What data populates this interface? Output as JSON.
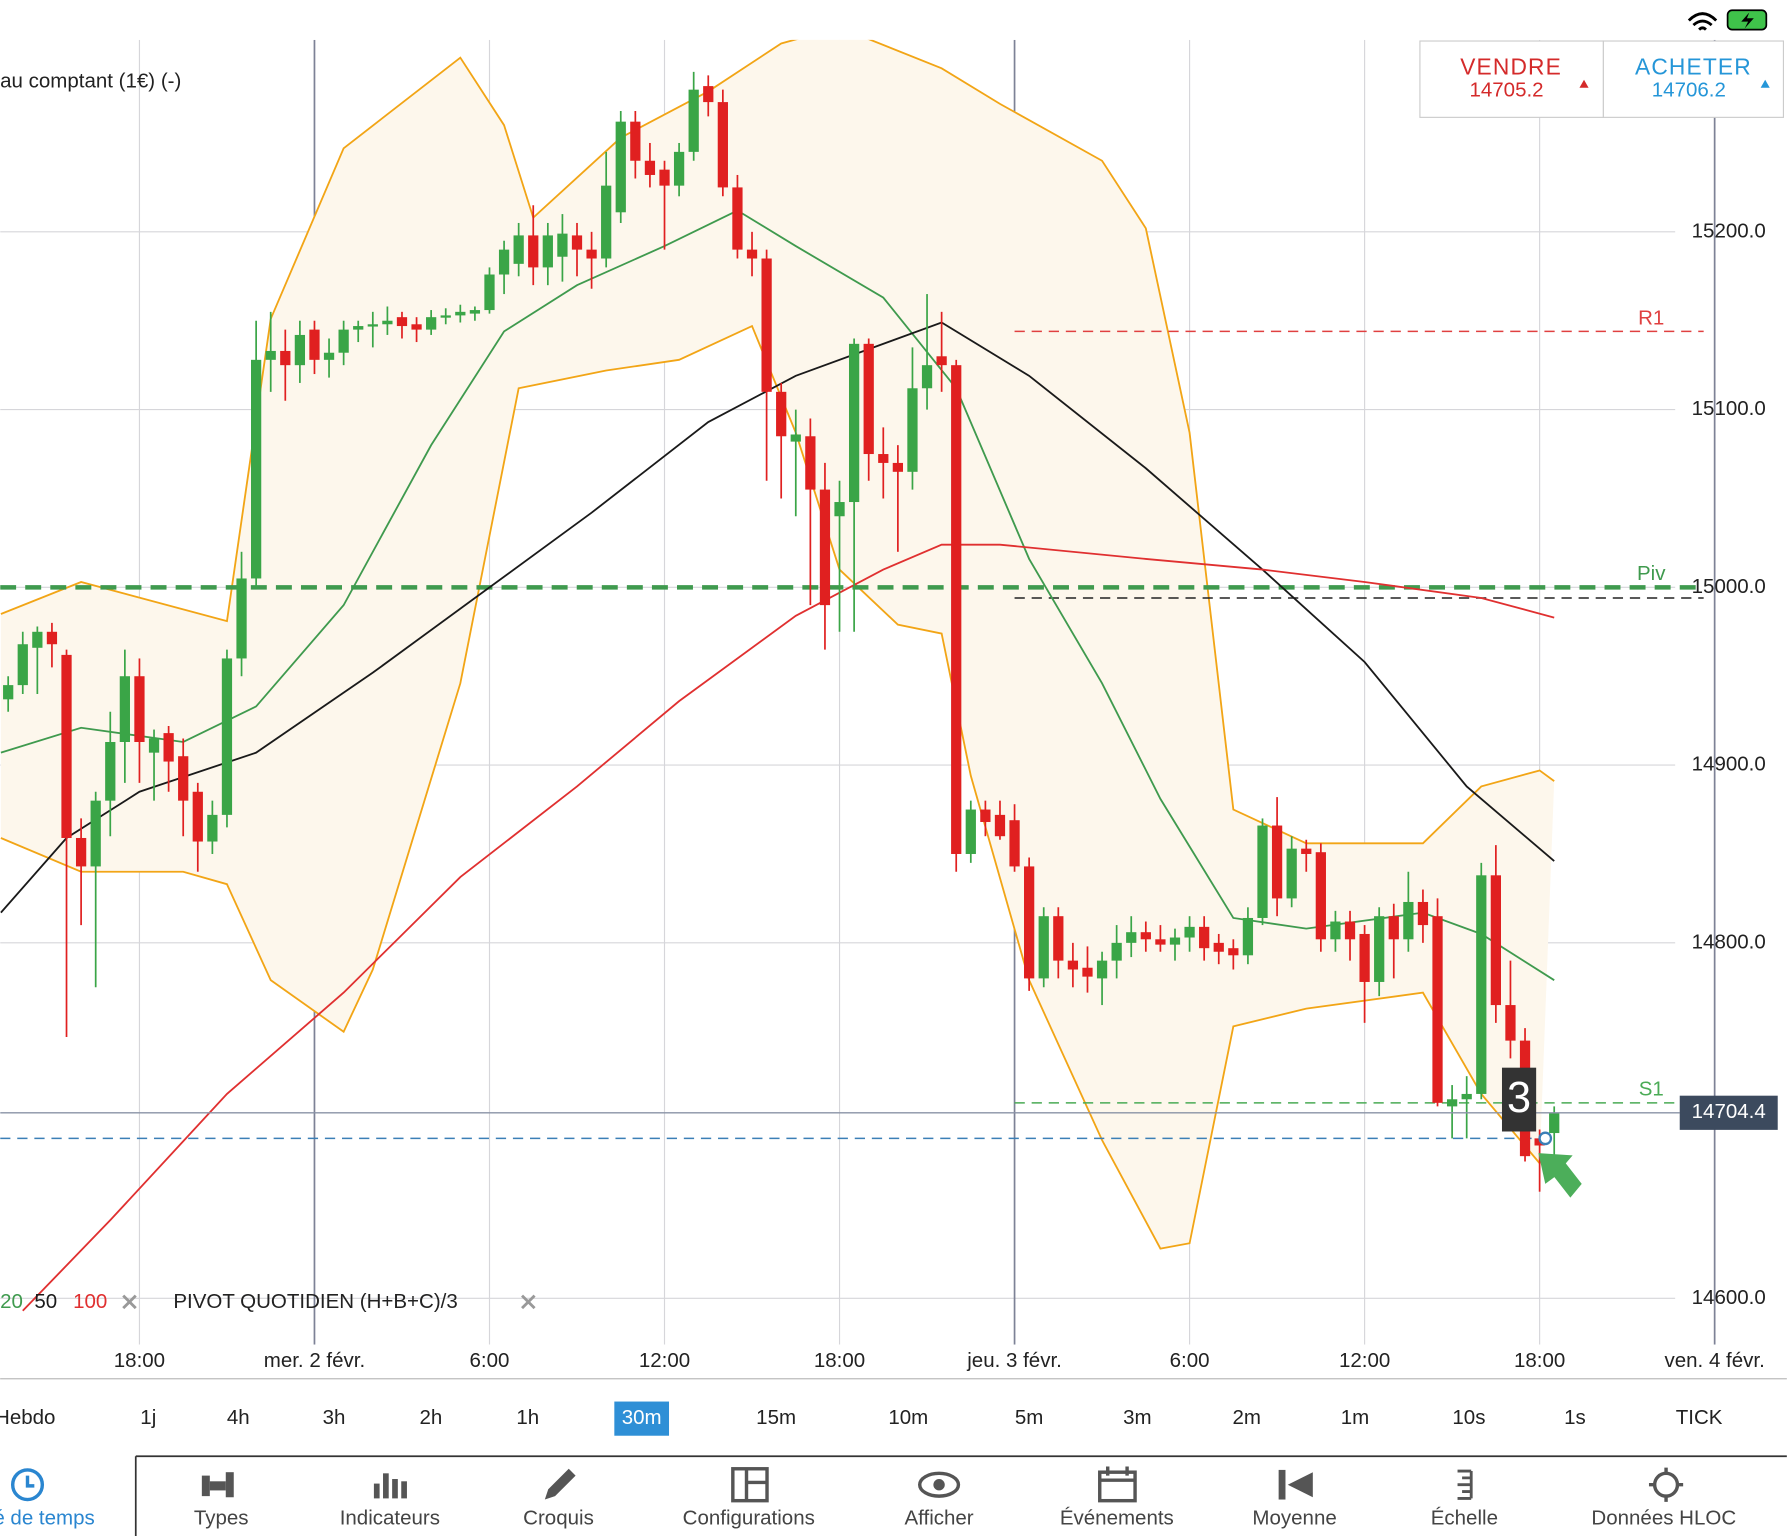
{
  "header": {
    "instrument": "au comptant (1€) (-)"
  },
  "quote": {
    "sell_label": "VENDRE",
    "sell": 14705.2,
    "buy_label": "ACHETER",
    "buy": 14706.2
  },
  "chart_data": {
    "type": "candlestick",
    "up_color": "#3aa547",
    "down_color": "#e02020",
    "xlim": [
      -0.55,
      121.95
    ],
    "ylim": [
      14574,
      15308
    ],
    "yticks": [
      {
        "value": 14600,
        "label": "14600.0"
      },
      {
        "value": 14800,
        "label": "14800.0"
      },
      {
        "value": 14900,
        "label": "14900.0"
      },
      {
        "value": 15000,
        "label": "15000.0"
      },
      {
        "value": 15100,
        "label": "15100.0"
      },
      {
        "value": 15200,
        "label": "15200.0"
      }
    ],
    "xticks": [
      {
        "value": 9,
        "label": "18:00"
      },
      {
        "value": 21,
        "label": "mer. 2 févr."
      },
      {
        "value": 33,
        "label": "6:00"
      },
      {
        "value": 45,
        "label": "12:00"
      },
      {
        "value": 57,
        "label": "18:00"
      },
      {
        "value": 69,
        "label": "jeu. 3 févr."
      },
      {
        "value": 81,
        "label": "6:00"
      },
      {
        "value": 93,
        "label": "12:00"
      },
      {
        "value": 105,
        "label": "18:00"
      },
      {
        "value": 117,
        "label": "ven. 4 févr."
      }
    ],
    "candles": [
      [
        14937,
        14950,
        14930,
        14945
      ],
      [
        14945,
        14975,
        14940,
        14968
      ],
      [
        14966,
        14978,
        14940,
        14975
      ],
      [
        14975,
        14980,
        14955,
        14968
      ],
      [
        14962,
        14965,
        14747,
        14859
      ],
      [
        14859,
        14870,
        14810,
        14843
      ],
      [
        14843,
        14885,
        14775,
        14880
      ],
      [
        14880,
        14930,
        14860,
        14913
      ],
      [
        14913,
        14965,
        14890,
        14950
      ],
      [
        14950,
        14960,
        14890,
        14913
      ],
      [
        14907,
        14920,
        14880,
        14915
      ],
      [
        14918,
        14922,
        14885,
        14902
      ],
      [
        14905,
        14915,
        14860,
        14880
      ],
      [
        14885,
        14890,
        14840,
        14857
      ],
      [
        14857,
        14880,
        14850,
        14872
      ],
      [
        14872,
        14965,
        14865,
        14960
      ],
      [
        14960,
        15020,
        14950,
        15005
      ],
      [
        15005,
        15150,
        15000,
        15128
      ],
      [
        15128,
        15155,
        15110,
        15133
      ],
      [
        15133,
        15145,
        15105,
        15125
      ],
      [
        15125,
        15150,
        15115,
        15142
      ],
      [
        15145,
        15150,
        15120,
        15128
      ],
      [
        15128,
        15140,
        15118,
        15132
      ],
      [
        15132,
        15150,
        15125,
        15145
      ],
      [
        15145,
        15150,
        15138,
        15147
      ],
      [
        15147,
        15155,
        15135,
        15148
      ],
      [
        15148,
        15158,
        15142,
        15150
      ],
      [
        15152,
        15155,
        15140,
        15147
      ],
      [
        15148,
        15152,
        15138,
        15145
      ],
      [
        15145,
        15156,
        15142,
        15152
      ],
      [
        15152,
        15157,
        15148,
        15153
      ],
      [
        15153,
        15159,
        15149,
        15155
      ],
      [
        15154,
        15158,
        15150,
        15156
      ],
      [
        15156,
        15180,
        15154,
        15176
      ],
      [
        15176,
        15195,
        15165,
        15190
      ],
      [
        15182,
        15205,
        15175,
        15198
      ],
      [
        15198,
        15215,
        15170,
        15180
      ],
      [
        15180,
        15205,
        15170,
        15198
      ],
      [
        15186,
        15210,
        15172,
        15199
      ],
      [
        15198,
        15205,
        15175,
        15190
      ],
      [
        15190,
        15200,
        15168,
        15185
      ],
      [
        15185,
        15245,
        15180,
        15226
      ],
      [
        15211,
        15268,
        15205,
        15262
      ],
      [
        15262,
        15268,
        15230,
        15240
      ],
      [
        15240,
        15250,
        15225,
        15232
      ],
      [
        15235,
        15240,
        15190,
        15226
      ],
      [
        15226,
        15250,
        15220,
        15245
      ],
      [
        15245,
        15290,
        15240,
        15280
      ],
      [
        15282,
        15288,
        15265,
        15273
      ],
      [
        15273,
        15280,
        15220,
        15225
      ],
      [
        15225,
        15232,
        15185,
        15190
      ],
      [
        15190,
        15200,
        15175,
        15185
      ],
      [
        15185,
        15190,
        15060,
        15110
      ],
      [
        15110,
        15115,
        15050,
        15085
      ],
      [
        15082,
        15100,
        15040,
        15086
      ],
      [
        15085,
        15095,
        14990,
        15055
      ],
      [
        15055,
        15070,
        14965,
        14990
      ],
      [
        15040,
        15060,
        14975,
        15048
      ],
      [
        15048,
        15140,
        14975,
        15137
      ],
      [
        15137,
        15140,
        15060,
        15075
      ],
      [
        15075,
        15090,
        15050,
        15070
      ],
      [
        15070,
        15080,
        15020,
        15065
      ],
      [
        15065,
        15135,
        15055,
        15112
      ],
      [
        15112,
        15165,
        15100,
        15125
      ],
      [
        15130,
        15155,
        15110,
        15125
      ],
      [
        15125,
        15128,
        14840,
        14850
      ],
      [
        14850,
        14880,
        14845,
        14875
      ],
      [
        14875,
        14880,
        14860,
        14868
      ],
      [
        14872,
        14880,
        14858,
        14860
      ],
      [
        14869,
        14878,
        14840,
        14843
      ],
      [
        14843,
        14848,
        14773,
        14780
      ],
      [
        14780,
        14820,
        14775,
        14815
      ],
      [
        14815,
        14820,
        14780,
        14790
      ],
      [
        14790,
        14800,
        14775,
        14785
      ],
      [
        14786,
        14798,
        14772,
        14781
      ],
      [
        14780,
        14795,
        14765,
        14790
      ],
      [
        14790,
        14810,
        14780,
        14800
      ],
      [
        14800,
        14815,
        14792,
        14806
      ],
      [
        14806,
        14812,
        14795,
        14802
      ],
      [
        14802,
        14810,
        14795,
        14799
      ],
      [
        14799,
        14808,
        14790,
        14803
      ],
      [
        14803,
        14815,
        14795,
        14809
      ],
      [
        14809,
        14815,
        14790,
        14797
      ],
      [
        14800,
        14805,
        14788,
        14795
      ],
      [
        14797,
        14802,
        14785,
        14793
      ],
      [
        14793,
        14820,
        14788,
        14814
      ],
      [
        14814,
        14870,
        14810,
        14866
      ],
      [
        14866,
        14882,
        14815,
        14825
      ],
      [
        14825,
        14860,
        14820,
        14853
      ],
      [
        14853,
        14858,
        14840,
        14850
      ],
      [
        14851,
        14856,
        14795,
        14802
      ],
      [
        14802,
        14818,
        14795,
        14812
      ],
      [
        14812,
        14818,
        14790,
        14802
      ],
      [
        14805,
        14810,
        14755,
        14778
      ],
      [
        14778,
        14820,
        14770,
        14815
      ],
      [
        14815,
        14822,
        14780,
        14802
      ],
      [
        14802,
        14840,
        14795,
        14823
      ],
      [
        14823,
        14830,
        14800,
        14810
      ],
      [
        14815,
        14825,
        14708,
        14710
      ],
      [
        14708,
        14720,
        14690,
        14712
      ],
      [
        14712,
        14725,
        14690,
        14715
      ],
      [
        14715,
        14845,
        14712,
        14838
      ],
      [
        14838,
        14855,
        14755,
        14765
      ],
      [
        14765,
        14790,
        14735,
        14745
      ],
      [
        14745,
        14752,
        14677,
        14680
      ],
      [
        14690,
        14695,
        14660,
        14686
      ],
      [
        14693,
        14708,
        14680,
        14704.4
      ]
    ],
    "band": {
      "color": "#f2a516",
      "fill": "#fdf7ec",
      "upper": {
        "x": [
          -0.5,
          5,
          15,
          18,
          23,
          31,
          34,
          36,
          42,
          48,
          53,
          57,
          64,
          68,
          75,
          78,
          81,
          84,
          89,
          97,
          101,
          105,
          106
        ],
        "values": [
          14985,
          15003,
          14981,
          15151,
          15247,
          15298,
          15260,
          15208,
          15253,
          15279,
          15306,
          15315,
          15292,
          15272,
          15240,
          15202,
          15087,
          14875,
          14856,
          14856,
          14888,
          14897,
          14891
        ]
      },
      "lower": {
        "x": [
          -0.5,
          5,
          12,
          15,
          18,
          23,
          25,
          31,
          35,
          41,
          46,
          51,
          54,
          57,
          61,
          64,
          66,
          70,
          75,
          79,
          81,
          84,
          89,
          97,
          101,
          105
        ],
        "values": [
          14859,
          14840,
          14840,
          14833,
          14779,
          14750,
          14785,
          14946,
          15112,
          15122,
          15128,
          15147,
          15087,
          15010,
          14979,
          14974,
          14894,
          14779,
          14689,
          14628,
          14631,
          14753,
          14763,
          14772,
          14715,
          14676
        ]
      }
    },
    "indicators": [
      {
        "name": "20",
        "color": "#3f9a4e",
        "x": [
          -0.5,
          5,
          12,
          17,
          23,
          29,
          34,
          39,
          45,
          50,
          54,
          60,
          65,
          70,
          75,
          79,
          84,
          89,
          97,
          101,
          106
        ],
        "values": [
          14907,
          14921,
          14913,
          14933,
          14990,
          15080,
          15144,
          15170,
          15192,
          15212,
          15192,
          15163,
          15112,
          15016,
          14946,
          14881,
          14814,
          14808,
          14817,
          14805,
          14779
        ]
      },
      {
        "name": "50",
        "color": "#1a1a1a",
        "x": [
          -0.5,
          4,
          9,
          17,
          25,
          32,
          40,
          48,
          54,
          64,
          70,
          78,
          86,
          93,
          100,
          106
        ],
        "values": [
          14817,
          14859,
          14885,
          14907,
          14952,
          14994,
          15042,
          15093,
          15119,
          15149,
          15119,
          15067,
          15010,
          14958,
          14888,
          14846
        ]
      },
      {
        "name": "100",
        "color": "#e03030",
        "x": [
          1,
          7,
          15,
          23,
          31,
          39,
          46,
          54,
          60,
          64,
          68,
          78,
          86,
          93,
          101,
          106
        ],
        "values": [
          14593,
          14644,
          14715,
          14772,
          14837,
          14888,
          14936,
          14984,
          15010,
          15024,
          15024,
          15016,
          15010,
          15003,
          14994,
          14983
        ]
      }
    ],
    "levels": [
      {
        "name": "R1",
        "value": 15144,
        "color": "#e04040",
        "from": 69
      },
      {
        "name": "Piv",
        "value": 15000,
        "color": "#3f9a4e",
        "from": -0.55,
        "width": 4
      },
      {
        "value": 14994,
        "color": "#222222",
        "from": 69
      },
      {
        "name": "S1",
        "value": 14710,
        "color": "#4aab55",
        "from": 69
      },
      {
        "value": 14690,
        "color": "#3b7fb6",
        "from": -0.55
      }
    ],
    "price": 14704.4,
    "badge": 3,
    "pivot_label": "PIVOT  QUOTIDIEN  (H+B+C)/3"
  },
  "timeframes": {
    "items": [
      "Hebdo",
      "1j",
      "4h",
      "3h",
      "2h",
      "1h",
      "30m",
      "15m",
      "10m",
      "5m",
      "3m",
      "2m",
      "1m",
      "10s",
      "1s",
      "TICK"
    ],
    "selected": 6
  },
  "toolbar": {
    "items": [
      "Unité de temps",
      "Types",
      "Indicateurs",
      "Croquis",
      "Configurations",
      "Afficher",
      "Événements",
      "Moyenne",
      "Échelle",
      "Données HLOC"
    ]
  }
}
